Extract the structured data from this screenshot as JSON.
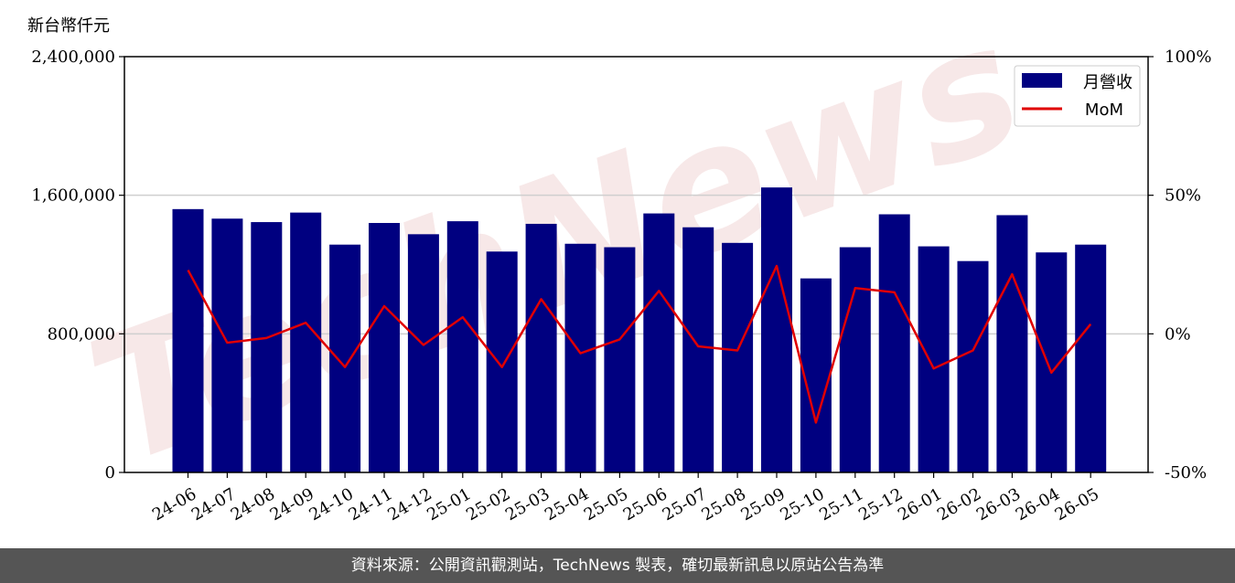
{
  "watermark": "TechNews",
  "footer": {
    "text": "資料來源：公開資訊觀測站，TechNews 製表，確切最新訊息以原站公告為準"
  },
  "colors": {
    "bar": "#000080",
    "line": "#e00000",
    "footer_bg": "#555555",
    "watermark": "#f3dede"
  },
  "chart_data": {
    "type": "bar",
    "ylabel": "新台幣仟元",
    "ylim": [
      0,
      2400000
    ],
    "y2lim": [
      -50,
      100
    ],
    "yticks": [
      "0",
      "800,000",
      "1,600,000",
      "2,400,000"
    ],
    "y2ticks": [
      "-50%",
      "0%",
      "50%",
      "100%"
    ],
    "grid": "horizontal",
    "legend_position": "top-right",
    "categories": [
      "24-06",
      "24-07",
      "24-08",
      "24-09",
      "24-10",
      "24-11",
      "24-12",
      "25-01",
      "25-02",
      "25-03",
      "25-04",
      "25-05",
      "25-06",
      "25-07",
      "25-08",
      "25-09",
      "25-10",
      "25-11",
      "25-12",
      "26-01",
      "26-02",
      "26-03",
      "26-04",
      "26-05"
    ],
    "series": [
      {
        "name": "月營收",
        "type": "bar",
        "axis": "left",
        "values": [
          1520000,
          1465000,
          1445000,
          1500000,
          1315000,
          1440000,
          1375000,
          1450000,
          1275000,
          1435000,
          1320000,
          1300000,
          1495000,
          1415000,
          1325000,
          1645000,
          1120000,
          1300000,
          1490000,
          1305000,
          1220000,
          1485000,
          1270000,
          1315000
        ]
      },
      {
        "name": "MoM",
        "type": "line",
        "axis": "right",
        "values": [
          23,
          -3.2,
          -1.5,
          4,
          -12,
          10,
          -4,
          6,
          -12,
          12.5,
          -7,
          -2,
          15.5,
          -4.5,
          -6,
          24.5,
          -32,
          16.5,
          15,
          -12.5,
          -6,
          21.5,
          -14,
          3.5
        ]
      }
    ]
  }
}
